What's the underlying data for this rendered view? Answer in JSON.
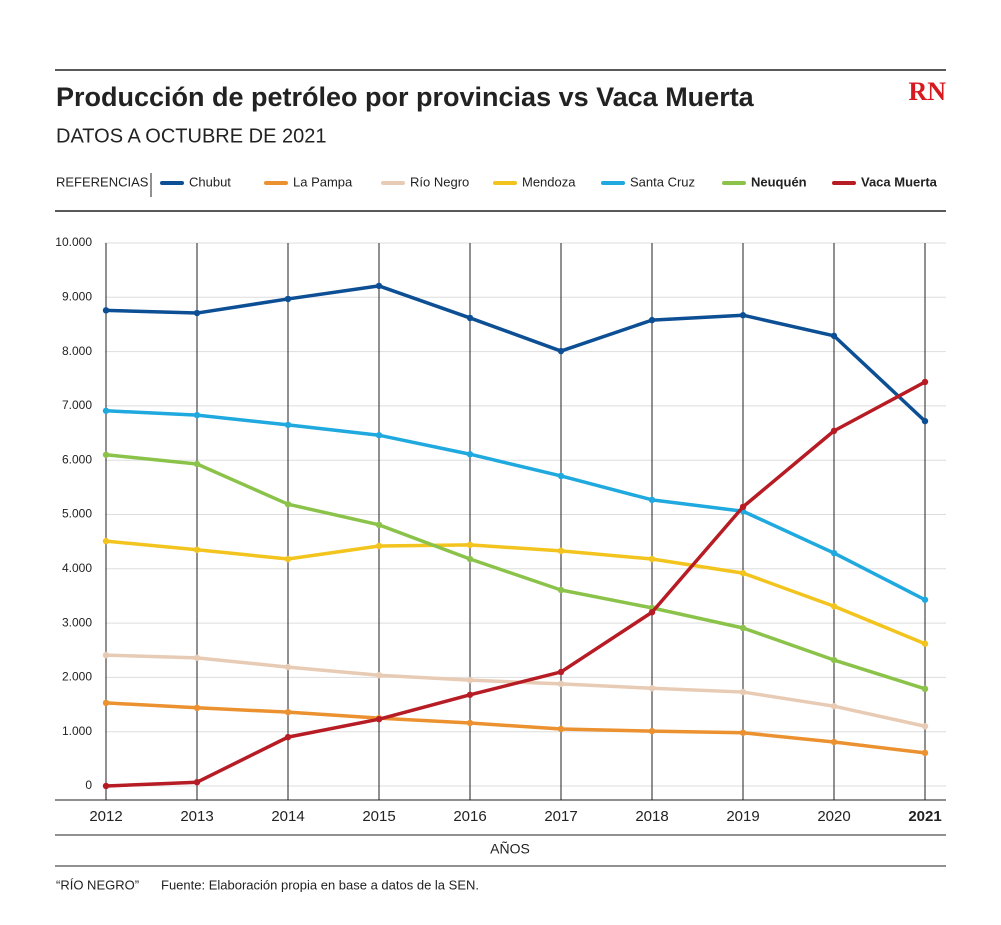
{
  "chart_data": {
    "type": "line",
    "title": "Producción de petróleo por provincias vs Vaca Muerta",
    "subtitle": "DATOS A OCTUBRE DE 2021",
    "logo": "RN",
    "legend_title": "REFERENCIAS",
    "x_label": "AÑOS",
    "credit": "“RÍO NEGRO”",
    "source": "Fuente: Elaboración propia en base a datos de la SEN.",
    "categories": [
      "2012",
      "2013",
      "2014",
      "2015",
      "2016",
      "2017",
      "2018",
      "2019",
      "2020",
      "2021"
    ],
    "ylim": [
      0,
      10000
    ],
    "yticks": [
      0,
      {
        "value": 1000,
        "label": "1.000"
      },
      {
        "value": 2000,
        "label": "2.000"
      },
      {
        "value": 3000,
        "label": "3.000"
      },
      {
        "value": 4000,
        "label": "4.000"
      },
      {
        "value": 5000,
        "label": "5.000"
      },
      {
        "value": 6000,
        "label": "6.000"
      },
      {
        "value": 7000,
        "label": "7.000"
      },
      {
        "value": 8000,
        "label": "8.000"
      },
      {
        "value": 9000,
        "label": "9.000"
      },
      {
        "value": 10000,
        "label": "10.000"
      }
    ],
    "grid": true,
    "series": [
      {
        "name": "Chubut",
        "color": "#0d4f94",
        "values": [
          8760,
          8710,
          8970,
          9210,
          8620,
          8010,
          8580,
          8670,
          8290,
          6720
        ]
      },
      {
        "name": "La Pampa",
        "color": "#ec9130",
        "values": [
          1530,
          1440,
          1360,
          1250,
          1160,
          1050,
          1010,
          980,
          810,
          610
        ]
      },
      {
        "name": "Río Negro",
        "color": "#e8cbb4",
        "values": [
          2410,
          2360,
          2190,
          2040,
          1950,
          1880,
          1800,
          1730,
          1470,
          1100
        ]
      },
      {
        "name": "Mendoza",
        "color": "#f3c41d",
        "values": [
          4510,
          4350,
          4180,
          4420,
          4440,
          4330,
          4180,
          3920,
          3310,
          2620
        ]
      },
      {
        "name": "Santa Cruz",
        "color": "#1fa9df",
        "values": [
          6910,
          6830,
          6650,
          6460,
          6110,
          5710,
          5270,
          5060,
          4290,
          3430
        ]
      },
      {
        "name": "Neuquén",
        "color": "#8bc34a",
        "values": [
          6100,
          5930,
          5190,
          4810,
          4180,
          3610,
          3280,
          2910,
          2320,
          1790
        ]
      },
      {
        "name": "Vaca Muerta",
        "color": "#b71c25",
        "values": [
          0,
          70,
          900,
          1230,
          1680,
          2100,
          3200,
          5140,
          6540,
          7440
        ]
      }
    ]
  }
}
